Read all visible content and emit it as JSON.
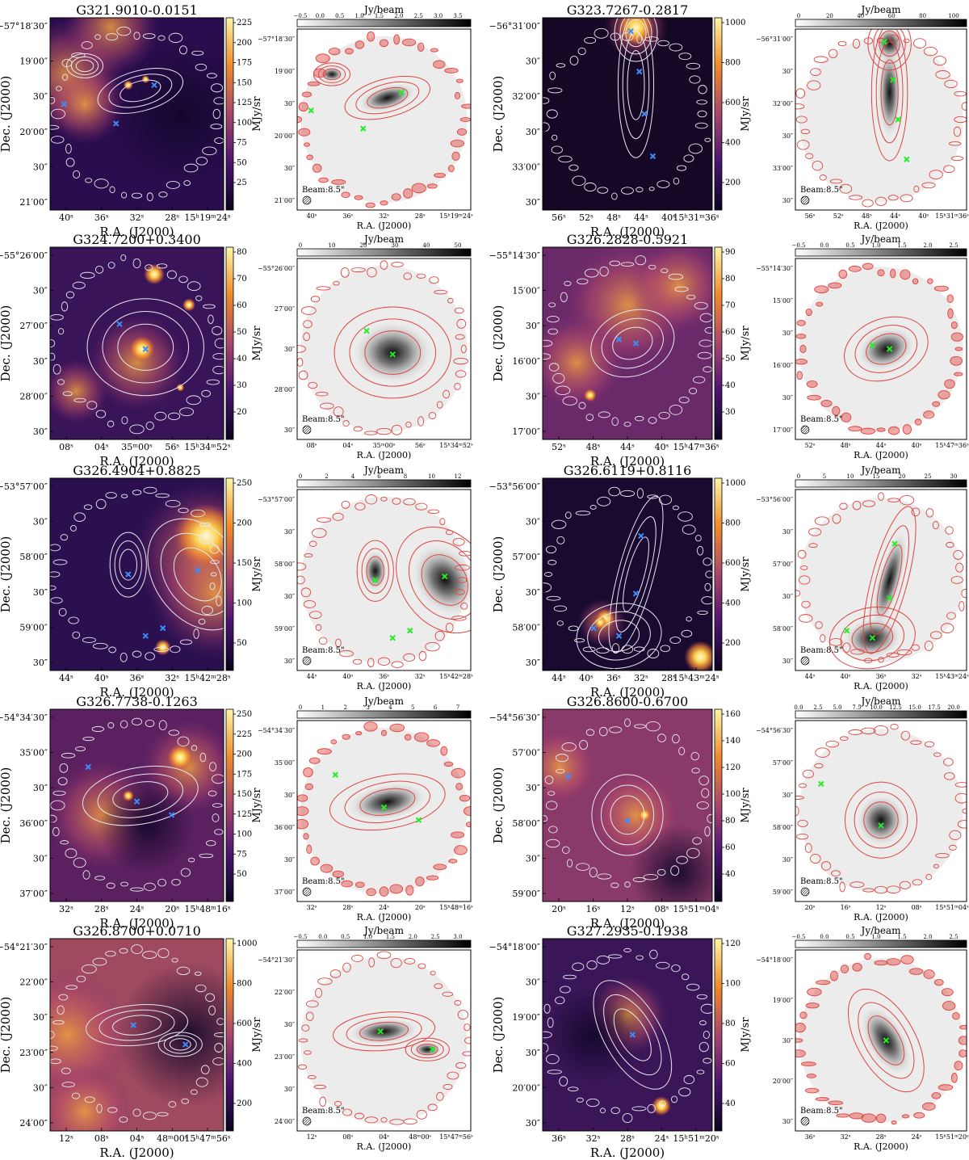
{
  "labels": {
    "ra_axis": "R.A. (J2000)",
    "dec_axis": "Dec. (J2000)",
    "colorbar_mjy": "MJy/sr",
    "colorbar_jy": "Jy/beam",
    "beam": "Beam:8.5\""
  },
  "colors": {
    "ir_dark": "#16082e",
    "ir_mid": "#a8466d",
    "ir_bright": "#f2a020",
    "ir_sat": "#fdf5a0",
    "contour_white": "#e8e8ee",
    "contour_red": "#e04540",
    "source_blue": "#3b8cff",
    "source_green": "#22ee22"
  },
  "fields": [
    {
      "name": "G321.9010-0.0151",
      "ir_cbar_ticks": [
        "225",
        "200",
        "175",
        "150",
        "125",
        "100",
        "75",
        "50",
        "25"
      ],
      "ir_dec_ticks": [
        "−57°18′30″",
        "19′00″",
        "30″",
        "20′00″",
        "30″",
        "21′00″"
      ],
      "ir_ra_ticks": [
        "40ˢ",
        "36ˢ",
        "32ˢ",
        "28ˢ",
        "15ʰ19ᵐ24ˢ"
      ],
      "mm_cbar_ticks": [
        "−0.5",
        "0.0",
        "0.5",
        "1.0",
        "1.5",
        "2.0",
        "2.5",
        "3.0",
        "3.5"
      ],
      "mm_dec_ticks": [
        "−57°18′30″",
        "19′00″",
        "30″",
        "20′00″",
        "30″",
        "21′00″"
      ],
      "mm_ra_ticks": [
        "40ˢ",
        "36ˢ",
        "32ˢ",
        "28ˢ",
        "15ʰ19ᵐ24ˢ"
      ]
    },
    {
      "name": "G323.7267-0.2817",
      "ir_cbar_ticks": [
        "1000",
        "800",
        "600",
        "400",
        "200"
      ],
      "ir_dec_ticks": [
        "−56°31′00″",
        "30″",
        "32′00″",
        "30″",
        "33′00″",
        "30″"
      ],
      "ir_ra_ticks": [
        "56ˢ",
        "52ˢ",
        "48ˢ",
        "44ˢ",
        "40ˢ",
        "15ʰ31ᵐ36ˢ"
      ],
      "mm_cbar_ticks": [
        "0",
        "20",
        "40",
        "60",
        "80",
        "100"
      ],
      "mm_dec_ticks": [
        "−56°31′00″",
        "30″",
        "32′00″",
        "30″",
        "33′00″",
        "30″"
      ],
      "mm_ra_ticks": [
        "56ˢ",
        "52ˢ",
        "48ˢ",
        "44ˢ",
        "40ˢ",
        "15ʰ31ᵐ36ˢ"
      ]
    },
    {
      "name": "G324.7200+0.3400",
      "ir_cbar_ticks": [
        "80",
        "70",
        "60",
        "50",
        "40",
        "30",
        "20"
      ],
      "ir_dec_ticks": [
        "−55°26′00″",
        "30″",
        "27′00″",
        "30″",
        "28′00″",
        "30″"
      ],
      "ir_ra_ticks": [
        "08ˢ",
        "04ˢ",
        "35ᵐ00ˢ",
        "56ˢ",
        "15ʰ34ᵐ52ˢ"
      ],
      "mm_cbar_ticks": [
        "0",
        "10",
        "20",
        "30",
        "40",
        "50"
      ],
      "mm_dec_ticks": [
        "−55°26′00″",
        "27′00″",
        "30″",
        "28′00″",
        "30″"
      ],
      "mm_ra_ticks": [
        "08ˢ",
        "04ˢ",
        "35ᵐ00ˢ",
        "56ˢ",
        "15ʰ34ᵐ52ˢ"
      ]
    },
    {
      "name": "G326.2828-0.5921",
      "ir_cbar_ticks": [
        "90",
        "80",
        "70",
        "60",
        "50",
        "40",
        "30"
      ],
      "ir_dec_ticks": [
        "−55°14′30″",
        "15′00″",
        "30″",
        "16′00″",
        "30″",
        "17′00″"
      ],
      "ir_ra_ticks": [
        "52ˢ",
        "48ˢ",
        "44ˢ",
        "40ˢ",
        "15ʰ47ᵐ36ˢ"
      ],
      "mm_cbar_ticks": [
        "−0.5",
        "0.0",
        "0.5",
        "1.0",
        "1.5",
        "2.0",
        "2.5"
      ],
      "mm_dec_ticks": [
        "−55°14′30″",
        "15′00″",
        "30″",
        "16′00″",
        "30″",
        "17′00″"
      ],
      "mm_ra_ticks": [
        "52ˢ",
        "48ˢ",
        "44ˢ",
        "40ˢ",
        "15ʰ47ᵐ36ˢ"
      ]
    },
    {
      "name": "G326.4904+0.8825",
      "ir_cbar_ticks": [
        "250",
        "200",
        "150",
        "100",
        "50"
      ],
      "ir_dec_ticks": [
        "−53°57′00″",
        "30″",
        "58′00″",
        "30″",
        "59′00″",
        "30″"
      ],
      "ir_ra_ticks": [
        "44ˢ",
        "40ˢ",
        "36ˢ",
        "32ˢ",
        "15ʰ42ᵐ28ˢ"
      ],
      "mm_cbar_ticks": [
        "0",
        "2",
        "4",
        "6",
        "8",
        "10",
        "12"
      ],
      "mm_dec_ticks": [
        "−53°57′00″",
        "30″",
        "58′00″",
        "30″",
        "59′00″",
        "30″"
      ],
      "mm_ra_ticks": [
        "44ˢ",
        "40ˢ",
        "36ˢ",
        "32ˢ",
        "15ʰ42ᵐ28ˢ"
      ]
    },
    {
      "name": "G326.6119+0.8116",
      "ir_cbar_ticks": [
        "1000",
        "800",
        "600",
        "400",
        "200"
      ],
      "ir_dec_ticks": [
        "−53°56′00″",
        "30″",
        "57′00″",
        "30″",
        "58′00″",
        "30″"
      ],
      "ir_ra_ticks": [
        "44ˢ",
        "40ˢ",
        "36ˢ",
        "32ˢ",
        "28ˢ",
        "15ʰ43ᵐ24ˢ"
      ],
      "mm_cbar_ticks": [
        "0",
        "5",
        "10",
        "15",
        "20",
        "25",
        "30"
      ],
      "mm_dec_ticks": [
        "−53°56′00″",
        "30″",
        "57′00″",
        "30″",
        "58′00″",
        "30″"
      ],
      "mm_ra_ticks": [
        "44ˢ",
        "40ˢ",
        "36ˢ",
        "32ˢ",
        "15ʰ43ᵐ24ˢ"
      ]
    },
    {
      "name": "G326.7738-0.1263",
      "ir_cbar_ticks": [
        "250",
        "225",
        "200",
        "175",
        "150",
        "125",
        "100",
        "75",
        "50"
      ],
      "ir_dec_ticks": [
        "−54°34′30″",
        "35′00″",
        "30″",
        "36′00″",
        "30″",
        "37′00″"
      ],
      "ir_ra_ticks": [
        "32ˢ",
        "28ˢ",
        "24ˢ",
        "20ˢ",
        "15ʰ48ᵐ16ˢ"
      ],
      "mm_cbar_ticks": [
        "0",
        "1",
        "2",
        "3",
        "4",
        "5",
        "6",
        "7"
      ],
      "mm_dec_ticks": [
        "−54°34′30″",
        "35′00″",
        "30″",
        "36′00″",
        "30″",
        "37′00″"
      ],
      "mm_ra_ticks": [
        "32ˢ",
        "28ˢ",
        "24ˢ",
        "20ˢ",
        "15ʰ48ᵐ16ˢ"
      ]
    },
    {
      "name": "G326.8600-0.6700",
      "ir_cbar_ticks": [
        "160",
        "140",
        "120",
        "100",
        "80",
        "60",
        "40"
      ],
      "ir_dec_ticks": [
        "−54°56′30″",
        "57′00″",
        "30″",
        "58′00″",
        "30″",
        "59′00″"
      ],
      "ir_ra_ticks": [
        "20ˢ",
        "16ˢ",
        "12ˢ",
        "08ˢ",
        "15ʰ51ᵐ04ˢ"
      ],
      "mm_cbar_ticks": [
        "0.0",
        "2.5",
        "5.0",
        "7.5",
        "10.0",
        "12.5",
        "15.0",
        "17.5",
        "20.0"
      ],
      "mm_dec_ticks": [
        "−54°56′30″",
        "57′00″",
        "30″",
        "58′00″",
        "30″",
        "59′00″"
      ],
      "mm_ra_ticks": [
        "20ˢ",
        "16ˢ",
        "12ˢ",
        "08ˢ",
        "15ʰ51ᵐ04ˢ"
      ]
    },
    {
      "name": "G326.8700+0.0710",
      "ir_cbar_ticks": [
        "1000",
        "800",
        "600",
        "400",
        "200"
      ],
      "ir_dec_ticks": [
        "−54°21′30″",
        "22′00″",
        "30″",
        "23′00″",
        "30″",
        "24′00″"
      ],
      "ir_ra_ticks": [
        "12ˢ",
        "08ˢ",
        "04ˢ",
        "48ᵐ00ˢ",
        "15ʰ47ᵐ56ˢ"
      ],
      "mm_cbar_ticks": [
        "−0.5",
        "0.0",
        "0.5",
        "1.0",
        "1.5",
        "2.0",
        "2.5",
        "3.0"
      ],
      "mm_dec_ticks": [
        "−54°21′30″",
        "22′00″",
        "30″",
        "23′00″",
        "30″",
        "24′00″"
      ],
      "mm_ra_ticks": [
        "12ˢ",
        "08ˢ",
        "04ˢ",
        "48ᵐ00ˢ",
        "15ʰ47ᵐ56ˢ"
      ]
    },
    {
      "name": "G327.2935-0.1938",
      "ir_cbar_ticks": [
        "120",
        "100",
        "80",
        "60",
        "40"
      ],
      "ir_dec_ticks": [
        "−54°18′00″",
        "30″",
        "19′00″",
        "30″",
        "20′00″",
        "30″"
      ],
      "ir_ra_ticks": [
        "36ˢ",
        "32ˢ",
        "28ˢ",
        "24ˢ",
        "15ʰ51ᵐ20ˢ"
      ],
      "mm_cbar_ticks": [
        "−0.5",
        "0.0",
        "0.5",
        "1.0",
        "1.5",
        "2.0",
        "2.5"
      ],
      "mm_dec_ticks": [
        "−54°18′00″",
        "19′00″",
        "30″",
        "20′00″",
        "30″"
      ],
      "mm_ra_ticks": [
        "36ˢ",
        "32ˢ",
        "28ˢ",
        "24ˢ",
        "15ʰ51ᵐ20ˢ"
      ]
    }
  ]
}
